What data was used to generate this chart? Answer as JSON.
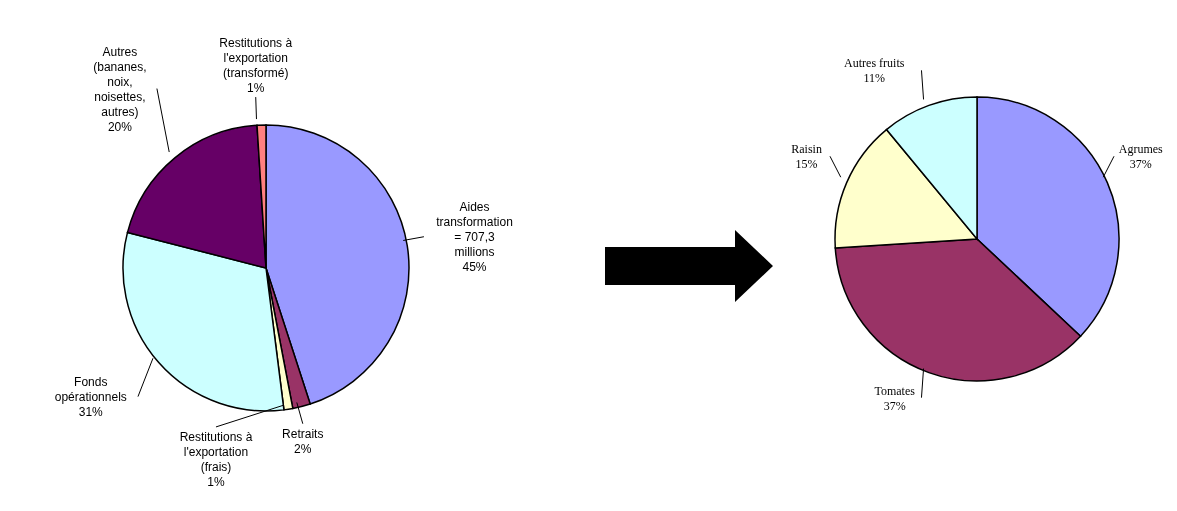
{
  "chart_data": [
    {
      "type": "pie",
      "categories": [
        "Aides transformation = 707,3 millions",
        "Retraits",
        "Restitutions à l'exportation (frais)",
        "Fonds opérationnels",
        "Autres (bananes, noix, noisettes, autres)",
        "Restitutions à l'exportation (transformé)"
      ],
      "values": [
        45,
        2,
        1,
        31,
        20,
        1
      ],
      "value_labels": [
        "45%",
        "2%",
        "1%",
        "31%",
        "20%",
        "1%"
      ],
      "colors": [
        "#9999ff",
        "#993366",
        "#ffffcc",
        "#ccffff",
        "#660066",
        "#ff8080"
      ],
      "legend": false
    },
    {
      "type": "pie",
      "categories": [
        "Agrumes",
        "Tomates",
        "Raisin",
        "Autres fruits"
      ],
      "values": [
        37,
        37,
        15,
        11
      ],
      "value_labels": [
        "37%",
        "37%",
        "15%",
        "11%"
      ],
      "colors": [
        "#9999ff",
        "#993366",
        "#ffffcc",
        "#ccffff"
      ],
      "legend": false
    }
  ]
}
